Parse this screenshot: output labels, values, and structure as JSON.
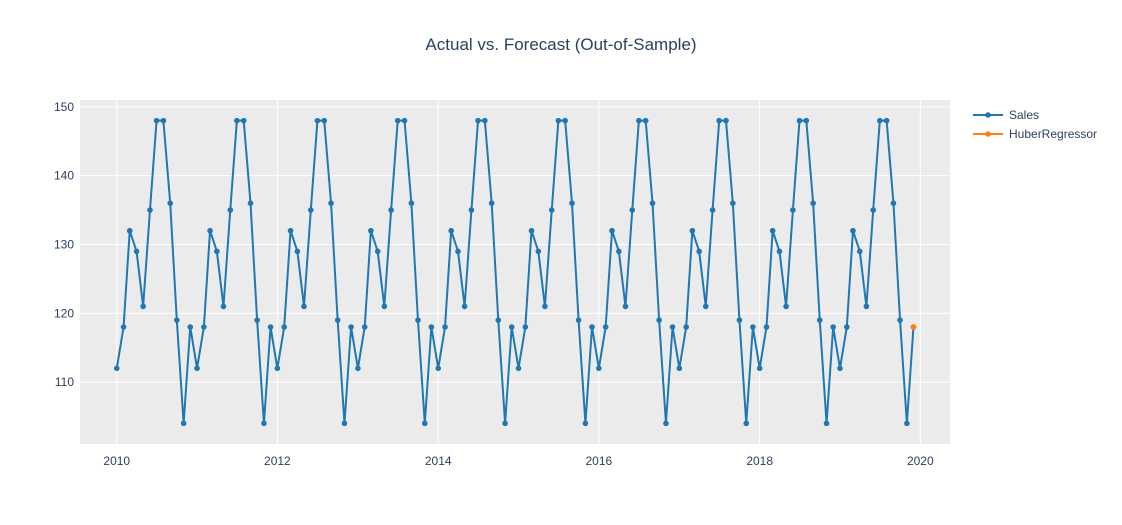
{
  "chart_data": {
    "type": "line",
    "title": "Actual vs. Forecast (Out-of-Sample)",
    "xlabel": "",
    "ylabel": "",
    "x_ticks": [
      "2010",
      "2012",
      "2014",
      "2016",
      "2018",
      "2020"
    ],
    "y_ticks": [
      "110",
      "120",
      "130",
      "140",
      "150"
    ],
    "xlim": [
      "2009-07-18",
      "2020-05-15"
    ],
    "ylim": [
      101,
      151
    ],
    "grid": true,
    "legend_position": "top-right",
    "x": [
      "2010-01-01",
      "2010-02-01",
      "2010-03-01",
      "2010-04-01",
      "2010-05-01",
      "2010-06-01",
      "2010-07-01",
      "2010-08-01",
      "2010-09-01",
      "2010-10-01",
      "2010-11-01",
      "2010-12-01",
      "2011-01-01",
      "2011-02-01",
      "2011-03-01",
      "2011-04-01",
      "2011-05-01",
      "2011-06-01",
      "2011-07-01",
      "2011-08-01",
      "2011-09-01",
      "2011-10-01",
      "2011-11-01",
      "2011-12-01",
      "2012-01-01",
      "2012-02-01",
      "2012-03-01",
      "2012-04-01",
      "2012-05-01",
      "2012-06-01",
      "2012-07-01",
      "2012-08-01",
      "2012-09-01",
      "2012-10-01",
      "2012-11-01",
      "2012-12-01",
      "2013-01-01",
      "2013-02-01",
      "2013-03-01",
      "2013-04-01",
      "2013-05-01",
      "2013-06-01",
      "2013-07-01",
      "2013-08-01",
      "2013-09-01",
      "2013-10-01",
      "2013-11-01",
      "2013-12-01",
      "2014-01-01",
      "2014-02-01",
      "2014-03-01",
      "2014-04-01",
      "2014-05-01",
      "2014-06-01",
      "2014-07-01",
      "2014-08-01",
      "2014-09-01",
      "2014-10-01",
      "2014-11-01",
      "2014-12-01",
      "2015-01-01",
      "2015-02-01",
      "2015-03-01",
      "2015-04-01",
      "2015-05-01",
      "2015-06-01",
      "2015-07-01",
      "2015-08-01",
      "2015-09-01",
      "2015-10-01",
      "2015-11-01",
      "2015-12-01",
      "2016-01-01",
      "2016-02-01",
      "2016-03-01",
      "2016-04-01",
      "2016-05-01",
      "2016-06-01",
      "2016-07-01",
      "2016-08-01",
      "2016-09-01",
      "2016-10-01",
      "2016-11-01",
      "2016-12-01",
      "2017-01-01",
      "2017-02-01",
      "2017-03-01",
      "2017-04-01",
      "2017-05-01",
      "2017-06-01",
      "2017-07-01",
      "2017-08-01",
      "2017-09-01",
      "2017-10-01",
      "2017-11-01",
      "2017-12-01",
      "2018-01-01",
      "2018-02-01",
      "2018-03-01",
      "2018-04-01",
      "2018-05-01",
      "2018-06-01",
      "2018-07-01",
      "2018-08-01",
      "2018-09-01",
      "2018-10-01",
      "2018-11-01",
      "2018-12-01",
      "2019-01-01",
      "2019-02-01",
      "2019-03-01",
      "2019-04-01",
      "2019-05-01",
      "2019-06-01",
      "2019-07-01",
      "2019-08-01",
      "2019-09-01",
      "2019-10-01",
      "2019-11-01",
      "2019-12-01"
    ],
    "series": [
      {
        "name": "Sales",
        "color": "#1f77b4",
        "values": [
          112,
          118,
          132,
          129,
          121,
          135,
          148,
          148,
          136,
          119,
          104,
          118,
          112,
          118,
          132,
          129,
          121,
          135,
          148,
          148,
          136,
          119,
          104,
          118,
          112,
          118,
          132,
          129,
          121,
          135,
          148,
          148,
          136,
          119,
          104,
          118,
          112,
          118,
          132,
          129,
          121,
          135,
          148,
          148,
          136,
          119,
          104,
          118,
          112,
          118,
          132,
          129,
          121,
          135,
          148,
          148,
          136,
          119,
          104,
          118,
          112,
          118,
          132,
          129,
          121,
          135,
          148,
          148,
          136,
          119,
          104,
          118,
          112,
          118,
          132,
          129,
          121,
          135,
          148,
          148,
          136,
          119,
          104,
          118,
          112,
          118,
          132,
          129,
          121,
          135,
          148,
          148,
          136,
          119,
          104,
          118,
          112,
          118,
          132,
          129,
          121,
          135,
          148,
          148,
          136,
          119,
          104,
          118,
          112,
          118,
          132,
          129,
          121,
          135,
          148,
          148,
          136,
          119,
          104,
          118
        ]
      },
      {
        "name": "HuberRegressor",
        "color": "#ff7f0e",
        "x": [
          "2019-12-01"
        ],
        "values": [
          118
        ]
      }
    ]
  }
}
